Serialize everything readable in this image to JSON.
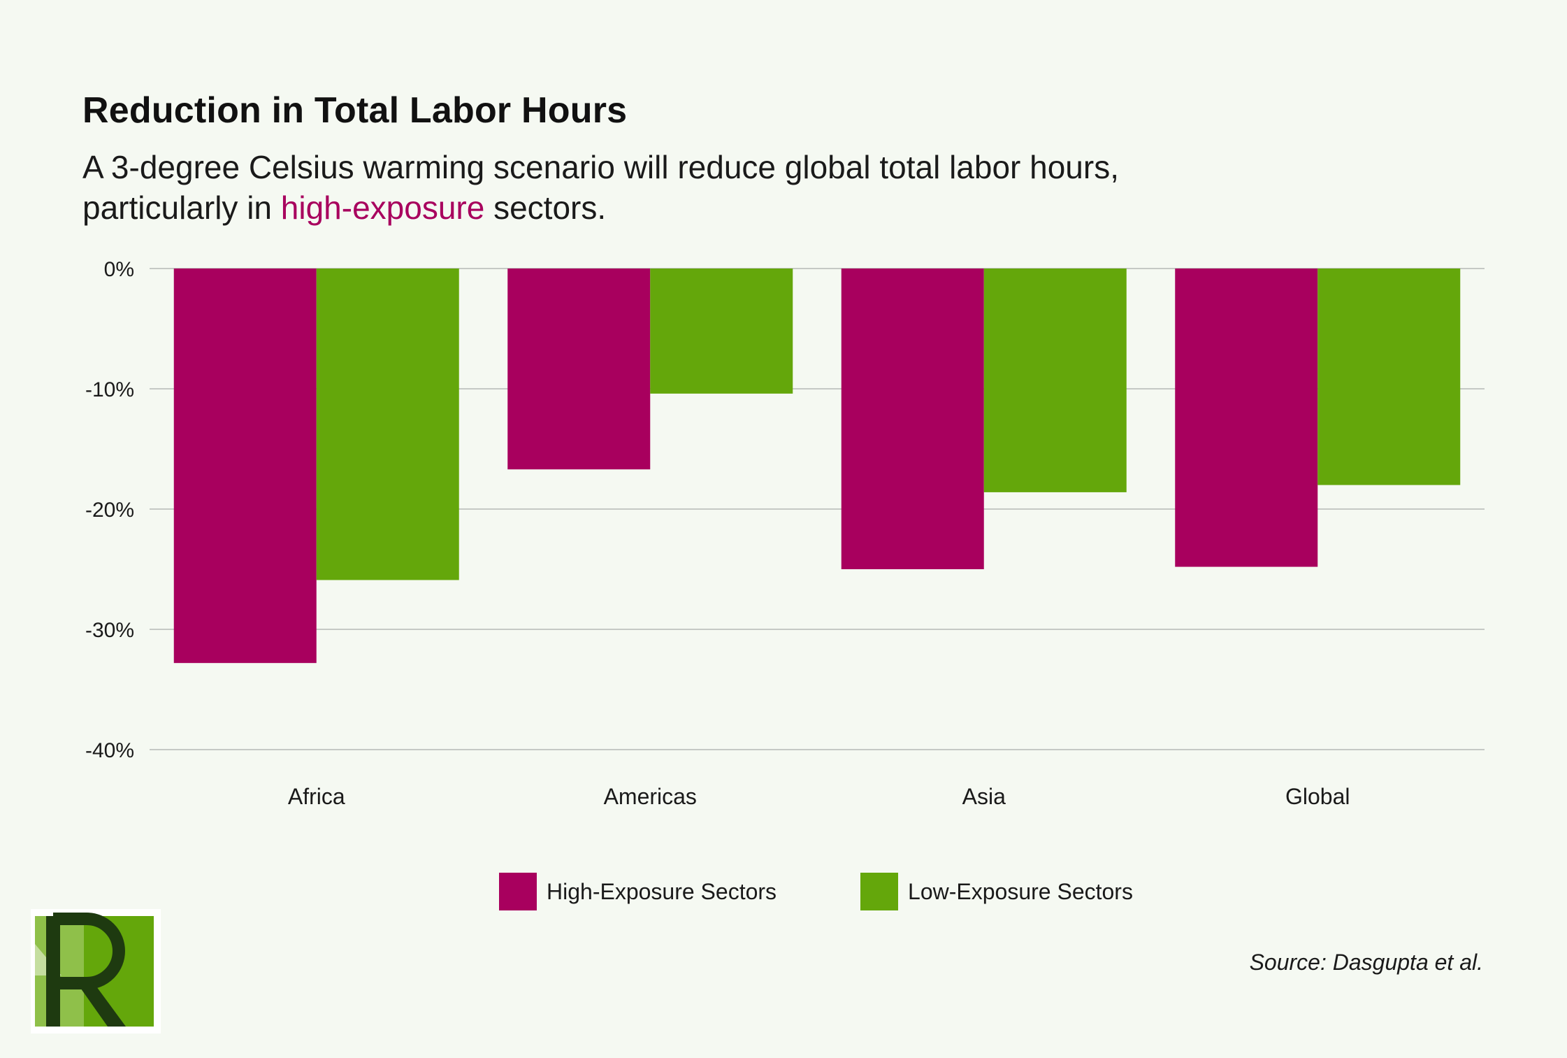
{
  "header": {
    "title": "Reduction in Total Labor Hours",
    "subtitle_pre": "A 3-degree Celsius warming scenario will reduce global total labor hours, particularly in ",
    "subtitle_highlight": "high-exposure",
    "subtitle_post": " sectors."
  },
  "colors": {
    "high": "#a8005e",
    "low": "#64a70b",
    "grid": "#c5c9c5",
    "background": "#f5f9f2"
  },
  "chart_data": {
    "type": "bar",
    "categories": [
      "Africa",
      "Americas",
      "Asia",
      "Global"
    ],
    "series": [
      {
        "name": "High-Exposure Sectors",
        "values": [
          -32.8,
          -16.7,
          -25.0,
          -24.8
        ]
      },
      {
        "name": "Low-Exposure Sectors",
        "values": [
          -25.9,
          -10.4,
          -18.6,
          -18.0
        ]
      }
    ],
    "ylim": [
      -40,
      0
    ],
    "yticks": [
      0,
      -10,
      -20,
      -30,
      -40
    ],
    "ytick_labels": [
      "0%",
      "-10%",
      "-20%",
      "-30%",
      "-40%"
    ],
    "grid": true,
    "legend_position": "bottom-center"
  },
  "legend": {
    "high_label": "High-Exposure Sectors",
    "low_label": "Low-Exposure Sectors"
  },
  "source": "Source: Dasgupta et al.",
  "logo": {
    "letter": "R",
    "icon": "r-logo-icon"
  }
}
